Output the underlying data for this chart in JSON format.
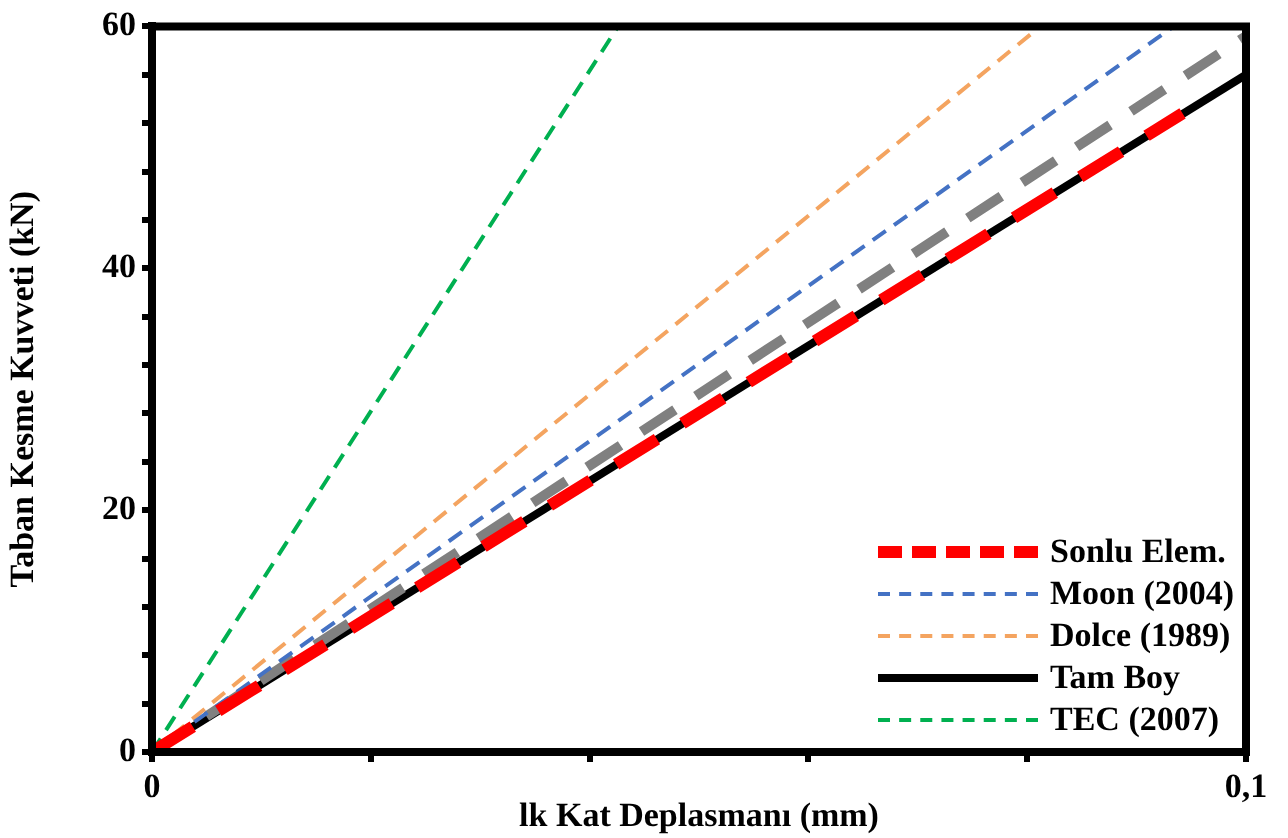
{
  "chart_data": {
    "type": "line",
    "xlabel": "lk Kat Deplasmanı (mm)",
    "ylabel": "Taban Kesme Kuvveti (kN)",
    "xlim": [
      0,
      0.1
    ],
    "ylim": [
      0,
      60
    ],
    "xticks": [
      0,
      {
        "value": 0.02,
        "label": null
      },
      {
        "value": 0.04,
        "label": null
      },
      {
        "value": 0.06,
        "label": null
      },
      {
        "value": 0.08,
        "label": null
      },
      {
        "value": 0.1,
        "label": "0,1"
      }
    ],
    "yticks": [
      0,
      {
        "value": 4,
        "label": null
      },
      {
        "value": 8,
        "label": null
      },
      {
        "value": 12,
        "label": null
      },
      {
        "value": 16,
        "label": null
      },
      20,
      {
        "value": 24,
        "label": null
      },
      {
        "value": 28,
        "label": null
      },
      {
        "value": 32,
        "label": null
      },
      {
        "value": 36,
        "label": null
      },
      40,
      {
        "value": 44,
        "label": null
      },
      {
        "value": 48,
        "label": null
      },
      {
        "value": 52,
        "label": null
      },
      {
        "value": 56,
        "label": null
      },
      60
    ],
    "grid": false,
    "legend": "bottom right",
    "marker": "none",
    "series": [
      {
        "name": "Sonlu Elem.",
        "color": "#ff0000",
        "line_style": "dashed",
        "x": [
          0,
          0.0942
        ],
        "values": [
          0,
          52.8
        ]
      },
      {
        "name": "Moon (2004)",
        "color": "#4472c4",
        "line_style": "dashed",
        "x": [
          0,
          0.0934
        ],
        "values": [
          0,
          60
        ]
      },
      {
        "name": "Dolce (1989)",
        "color": "#f4a460",
        "line_style": "dashed",
        "x": [
          0,
          0.0812
        ],
        "values": [
          0,
          60
        ]
      },
      {
        "color": "#808080",
        "line_style": "dashed",
        "x": [
          0,
          0.1
        ],
        "values": [
          0,
          59.2
        ]
      },
      {
        "name": "Tam Boy",
        "color": "#000000",
        "line_style": "solid",
        "x": [
          0,
          0.1
        ],
        "values": [
          0,
          56
        ]
      },
      {
        "name": "TEC (2007)",
        "color": "#00b050",
        "line_style": "dashed",
        "x": [
          0,
          0.0426
        ],
        "values": [
          0,
          60
        ]
      }
    ]
  }
}
